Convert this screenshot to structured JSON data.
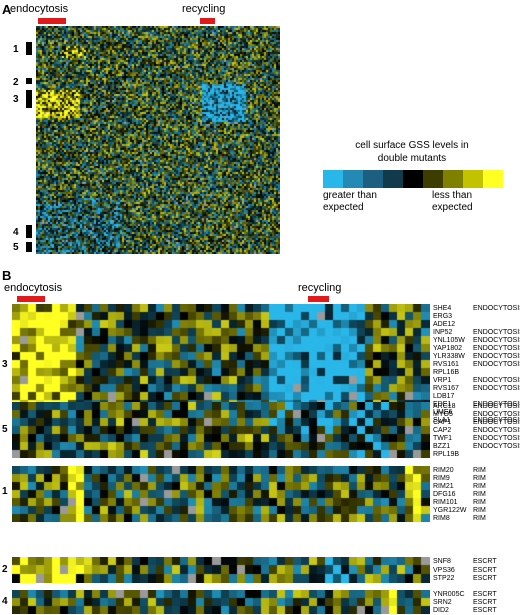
{
  "panelA": {
    "letter": "A",
    "label_endocytosis": "endocytosis",
    "label_recycling": "recycling",
    "clusters": [
      "1",
      "2",
      "3",
      "4",
      "5"
    ]
  },
  "legend": {
    "title_line1": "cell surface GSS levels in",
    "title_line2": "double mutants",
    "left_line1": "greater than",
    "left_line2": "expected",
    "right_line1": "less than",
    "right_line2": "expected",
    "colors": [
      "#29b6e8",
      "#2489b3",
      "#1c5f80",
      "#123a4d",
      "#000000",
      "#3d3d00",
      "#7f7f00",
      "#c2c200",
      "#ffff22"
    ]
  },
  "panelB": {
    "letter": "B",
    "label_endocytosis": "endocytosis",
    "label_recycling": "recycling",
    "blocks": [
      {
        "cluster": "3",
        "genes": [
          "SHE4",
          "ERG3",
          "ADE12",
          "INP52",
          "YNL105W",
          "YAP1802",
          "YLR338W",
          "RVS161",
          "RPL16B",
          "VRP1",
          "RVS167",
          "LDB17",
          "EDE1",
          "UME6",
          "SLA1"
        ],
        "classes": [
          "ENDOCYTOSIS",
          "",
          "",
          "ENDOCYTOSIS",
          "ENDOCYTOSIS",
          "ENDOCYTOSIS",
          "ENDOCYTOSIS",
          "ENDOCYTOSIS",
          "",
          "ENDOCYTOSIS",
          "ENDOCYTOSIS",
          "",
          "ENDOCYTOSIS",
          "",
          "ENDOCYTOSIS"
        ]
      },
      {
        "cluster": "5",
        "genes": [
          "ARC18",
          "MYO5",
          "CAP1",
          "CAP2",
          "TWF1",
          "BZZ1",
          "RPL19B"
        ],
        "classes": [
          "ENDOCYTOSIS",
          "ENDOCYTOSIS",
          "ENDOCYTOSIS",
          "ENDOCYTOSIS",
          "ENDOCYTOSIS",
          "ENDOCYTOSIS",
          ""
        ]
      },
      {
        "cluster": "1",
        "genes": [
          "RIM20",
          "RIM9",
          "RIM21",
          "DFG16",
          "RIM101",
          "YGR122W",
          "RIM8"
        ],
        "classes": [
          "RIM",
          "RIM",
          "RIM",
          "RIM",
          "RIM",
          "RIM",
          "RIM"
        ]
      },
      {
        "cluster": "2",
        "genes": [
          "SNF8",
          "VPS36",
          "STP22"
        ],
        "classes": [
          "ESCRT",
          "ESCRT",
          "ESCRT"
        ]
      },
      {
        "cluster": "4",
        "genes": [
          "YNR005C",
          "SRN2",
          "DID2"
        ],
        "classes": [
          "ESCRT",
          "ESCRT",
          "ESCRT"
        ]
      }
    ]
  }
}
